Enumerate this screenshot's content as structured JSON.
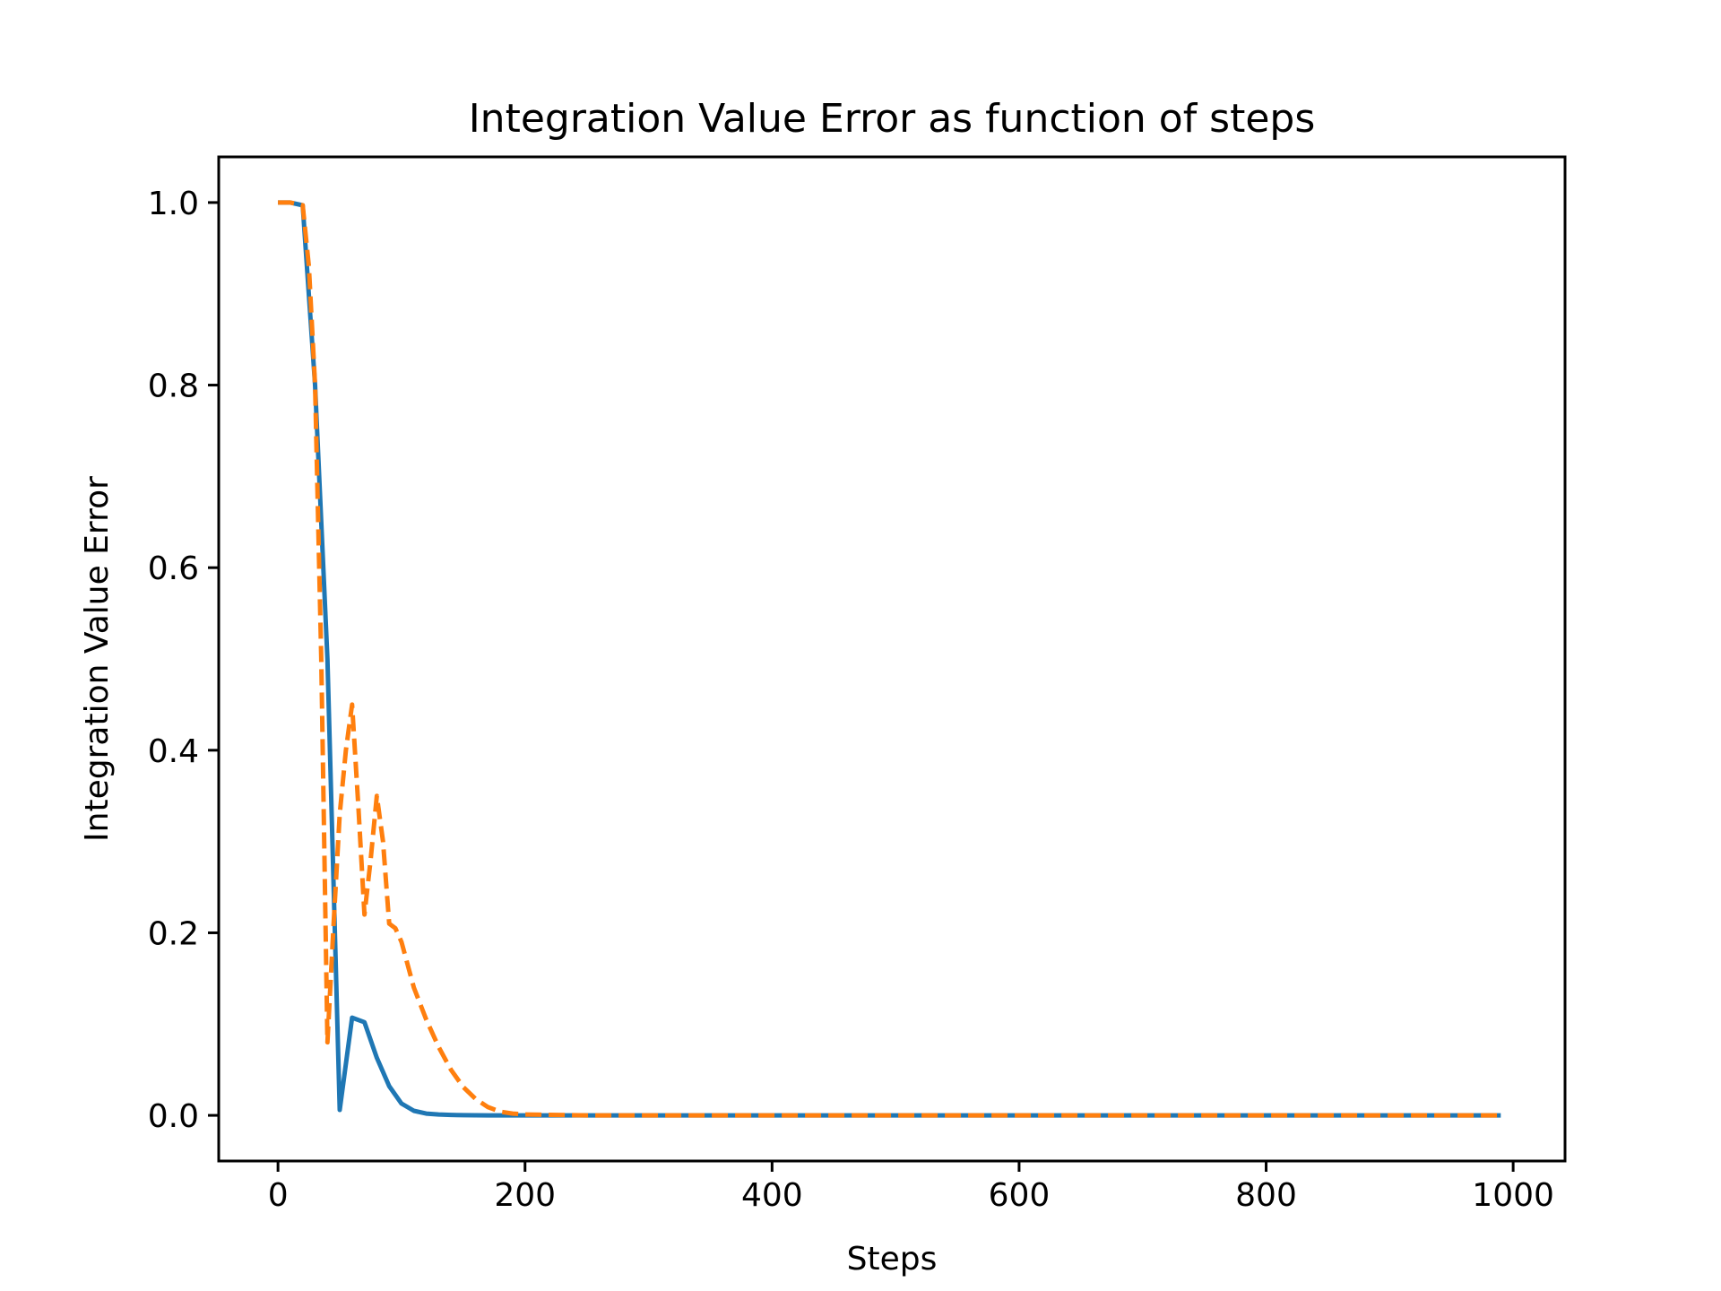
{
  "chart_data": {
    "type": "line",
    "title": "Integration Value Error as function of steps",
    "xlabel": "Steps",
    "ylabel": "Integration Value Error",
    "xlim": [
      -48,
      1042
    ],
    "ylim": [
      -0.05,
      1.05
    ],
    "xticks": [
      0,
      200,
      400,
      600,
      800,
      1000
    ],
    "xtick_labels": [
      "0",
      "200",
      "400",
      "600",
      "800",
      "1000"
    ],
    "yticks": [
      0.0,
      0.2,
      0.4,
      0.6,
      0.8,
      1.0
    ],
    "ytick_labels": [
      "0.0",
      "0.2",
      "0.4",
      "0.6",
      "0.8",
      "1.0"
    ],
    "grid": false,
    "legend": "none",
    "series": [
      {
        "color": "#1f77b4",
        "style": "solid",
        "x": [
          0,
          10,
          20,
          30,
          40,
          50,
          60,
          70,
          80,
          90,
          100,
          110,
          120,
          130,
          140,
          150,
          160,
          170,
          180,
          190,
          200,
          250,
          300,
          350,
          400,
          450,
          500,
          550,
          600,
          650,
          700,
          750,
          800,
          850,
          900,
          950,
          990
        ],
        "y": [
          1.0,
          1.0,
          0.997,
          0.8,
          0.5,
          0.006,
          0.107,
          0.102,
          0.063,
          0.032,
          0.013,
          0.005,
          0.002,
          0.001,
          0.0005,
          0.0002,
          0.0001,
          0,
          0,
          0,
          0,
          0,
          0,
          0,
          0,
          0,
          0,
          0,
          0,
          0,
          0,
          0,
          0,
          0,
          0,
          0,
          0
        ]
      },
      {
        "color": "#ff7f0e",
        "style": "dashed",
        "x": [
          0,
          10,
          20,
          25,
          30,
          35,
          40,
          45,
          50,
          55,
          60,
          65,
          70,
          75,
          80,
          85,
          90,
          95,
          100,
          110,
          120,
          130,
          140,
          150,
          160,
          170,
          180,
          190,
          200,
          250,
          300,
          350,
          400,
          450,
          500,
          550,
          600,
          650,
          700,
          750,
          800,
          850,
          900,
          950,
          990
        ],
        "y": [
          1.0,
          1.0,
          0.997,
          0.93,
          0.8,
          0.5,
          0.08,
          0.21,
          0.33,
          0.4,
          0.45,
          0.34,
          0.22,
          0.28,
          0.35,
          0.3,
          0.21,
          0.205,
          0.19,
          0.14,
          0.105,
          0.075,
          0.05,
          0.031,
          0.018,
          0.009,
          0.004,
          0.002,
          0.001,
          0,
          0,
          0,
          0,
          0,
          0,
          0,
          0,
          0,
          0,
          0,
          0,
          0,
          0,
          0,
          0
        ]
      }
    ]
  }
}
